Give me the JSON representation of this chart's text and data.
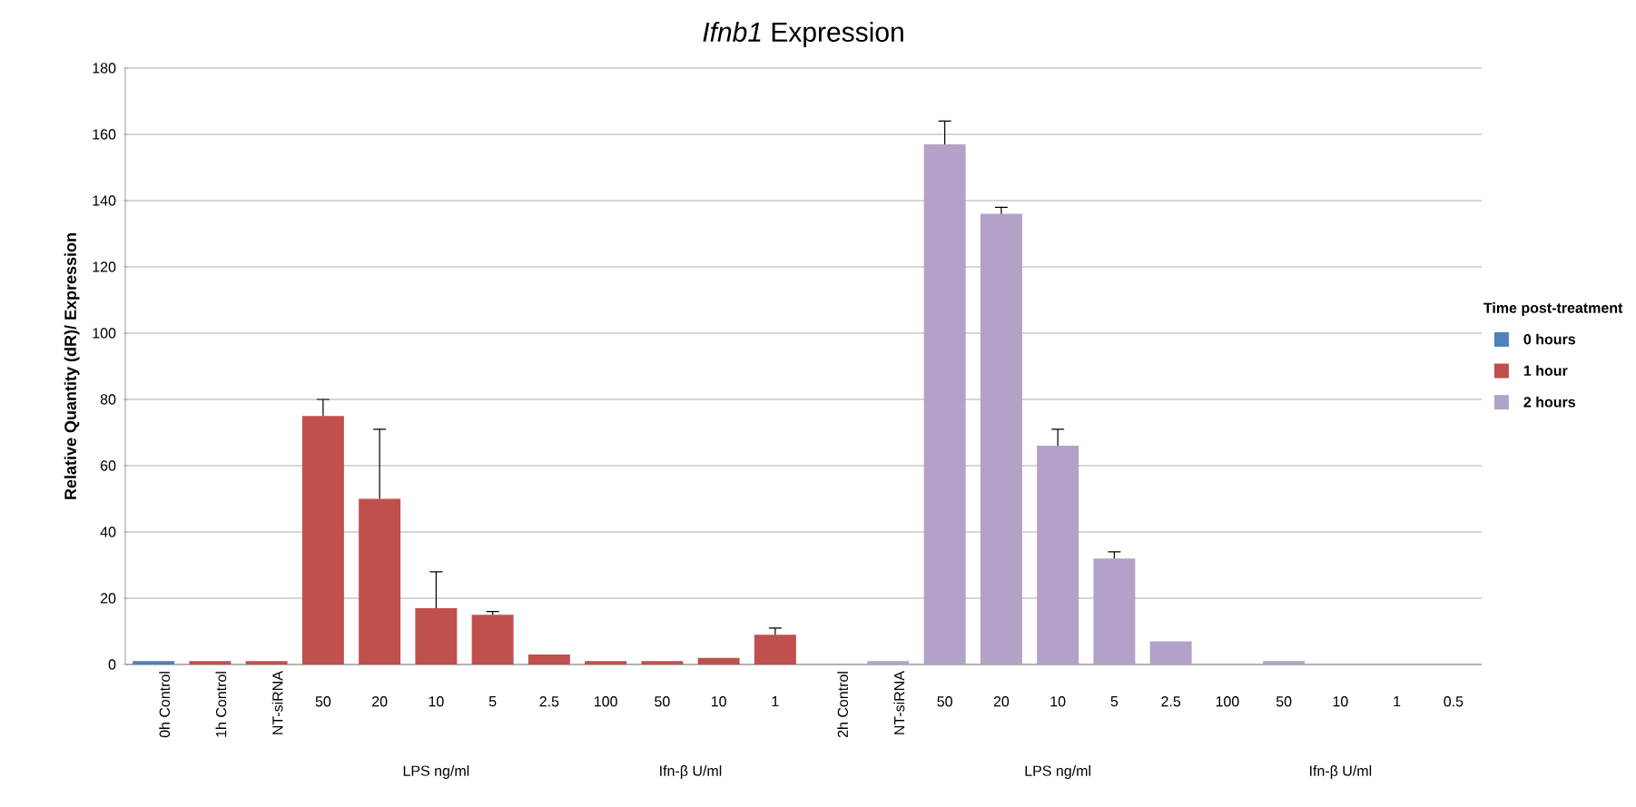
{
  "chart_data": {
    "type": "bar",
    "title": "*Ifnb1* Expression",
    "ylabel": "Relative Quantity (dR)/ Expression",
    "legend_title": "Time post-treatment",
    "categories": [
      "0h Control",
      "1h Control",
      "NT-siRNA",
      "50",
      "20",
      "10",
      "5",
      "2.5",
      "100",
      "50",
      "10",
      "1",
      "2h Control",
      "NT-siRNA",
      "50",
      "20",
      "10",
      "5",
      "2.5",
      "100",
      "50",
      "10",
      "1",
      "0.5"
    ],
    "series": [
      {
        "name": "0 hours",
        "color": "#4f81bd",
        "values": [
          1,
          null,
          null,
          null,
          null,
          null,
          null,
          null,
          null,
          null,
          null,
          null,
          null,
          null,
          null,
          null,
          null,
          null,
          null,
          null,
          null,
          null,
          null,
          null
        ]
      },
      {
        "name": "1 hour",
        "color": "#c0504d",
        "values": [
          null,
          1,
          1,
          75,
          50,
          17,
          15,
          3,
          1,
          1,
          2,
          9,
          null,
          null,
          null,
          null,
          null,
          null,
          null,
          null,
          null,
          null,
          null,
          null
        ],
        "errors": [
          null,
          null,
          null,
          [
            75,
            80
          ],
          [
            50,
            71
          ],
          [
            17,
            28
          ],
          [
            15,
            16
          ],
          null,
          null,
          null,
          null,
          [
            9,
            11
          ],
          null,
          null,
          null,
          null,
          null,
          null,
          null,
          null,
          null,
          null,
          null,
          null
        ]
      },
      {
        "name": "2 hours",
        "color": "#b3a2c7",
        "values": [
          null,
          null,
          null,
          null,
          null,
          null,
          null,
          null,
          null,
          null,
          null,
          null,
          0,
          1,
          157,
          136,
          66,
          32,
          7,
          0,
          1,
          0,
          0,
          0
        ],
        "errors": [
          null,
          null,
          null,
          null,
          null,
          null,
          null,
          null,
          null,
          null,
          null,
          null,
          null,
          null,
          [
            157,
            164
          ],
          [
            136,
            138
          ],
          [
            66,
            71
          ],
          [
            32,
            34
          ],
          null,
          null,
          null,
          null,
          null,
          null
        ]
      }
    ],
    "ylim": [
      0,
      180
    ],
    "yticks": [
      0,
      20,
      40,
      60,
      80,
      100,
      120,
      140,
      160,
      180
    ],
    "grid": "y",
    "legend": "right",
    "annotations": [
      "LPS ng/ml",
      "Ifn-β U/ml",
      "LPS ng/ml",
      "Ifn-β U/ml"
    ]
  }
}
